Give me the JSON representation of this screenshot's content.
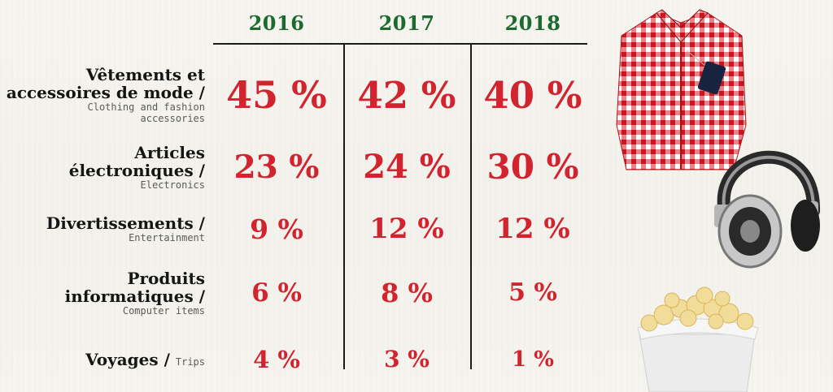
{
  "chart_data": {
    "type": "table",
    "columns": [
      "2016",
      "2017",
      "2018"
    ],
    "rows": [
      {
        "label_fr": "Vêtements et accessoires de mode /",
        "label_fr_lines": [
          "Vêtements et",
          "accessoires de mode /"
        ],
        "label_en": "Clothing and fashion accessories",
        "label_en_lines": [
          "Clothing and fashion",
          "accessories"
        ],
        "values": [
          45,
          42,
          40
        ],
        "display": [
          "45 %",
          "42 %",
          "40 %"
        ]
      },
      {
        "label_fr": "Articles électroniques /",
        "label_fr_lines": [
          "Articles",
          "électroniques /"
        ],
        "label_en": "Electronics",
        "label_en_lines": [
          "Electronics"
        ],
        "values": [
          23,
          24,
          30
        ],
        "display": [
          "23 %",
          "24 %",
          "30 %"
        ]
      },
      {
        "label_fr": "Divertissements /",
        "label_fr_lines": [
          "Divertissements /"
        ],
        "label_en": "Entertainment",
        "label_en_lines": [
          "Entertainment"
        ],
        "values": [
          9,
          12,
          12
        ],
        "display": [
          "9 %",
          "12 %",
          "12 %"
        ]
      },
      {
        "label_fr": "Produits informatiques /",
        "label_fr_lines": [
          "Produits",
          "informatiques /"
        ],
        "label_en": "Computer items",
        "label_en_lines": [
          "Computer items"
        ],
        "values": [
          6,
          8,
          5
        ],
        "display": [
          "6 %",
          "8 %",
          "5 %"
        ]
      },
      {
        "label_fr": "Voyages /",
        "label_fr_lines": [
          "Voyages /"
        ],
        "label_en": "Trips",
        "label_en_lines": [
          "Trips"
        ],
        "values": [
          4,
          3,
          1
        ],
        "display": [
          "4 %",
          "3 %",
          "1 %"
        ]
      }
    ],
    "unit": "%",
    "colors": {
      "header": "#1d6a2e",
      "value": "#d2242f",
      "label": "#151515",
      "subtitle": "#5a5a5a",
      "rule": "#1a1a1a"
    }
  },
  "decorations": [
    {
      "name": "shirt-image",
      "depicts": "red gingham shirt with tag"
    },
    {
      "name": "headphones-image",
      "depicts": "silver and black headphones"
    },
    {
      "name": "popcorn-image",
      "depicts": "popcorn bucket"
    }
  ]
}
